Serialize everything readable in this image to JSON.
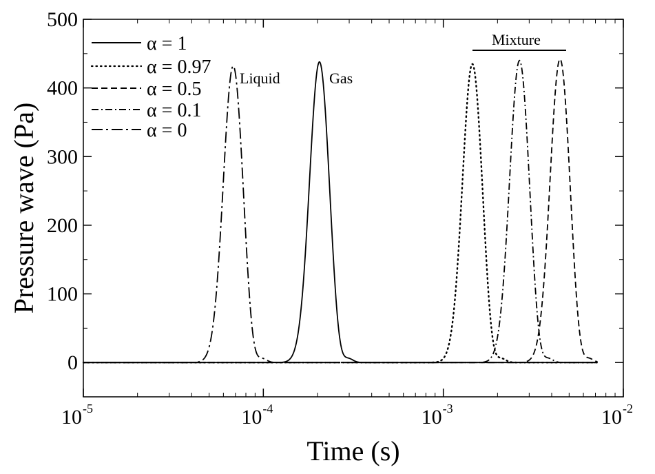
{
  "chart_data": {
    "type": "line",
    "title": "",
    "xlabel": "Time (s)",
    "ylabel": "Pressure wave (Pa)",
    "xscale": "log",
    "xlim": [
      1e-05,
      0.01
    ],
    "ylim": [
      -50,
      500
    ],
    "x_ticks": [
      {
        "base": "10",
        "exp": "-5",
        "value": 1e-05
      },
      {
        "base": "10",
        "exp": "-4",
        "value": 0.0001
      },
      {
        "base": "10",
        "exp": "-3",
        "value": 0.001
      },
      {
        "base": "10",
        "exp": "-2",
        "value": 0.01
      }
    ],
    "y_ticks": [
      0,
      100,
      200,
      300,
      400,
      500
    ],
    "y_tick_labels": [
      "0",
      "100",
      "200",
      "300",
      "400",
      "500"
    ],
    "legend_position": "top-left",
    "series": [
      {
        "name": "α = 1",
        "dash": "solid",
        "peak_time": 0.000205,
        "peak": 438
      },
      {
        "name": "α = 0.97",
        "dash": "dotted",
        "peak_time": 0.00145,
        "peak": 435
      },
      {
        "name": "α = 0.5",
        "dash": "dashed",
        "peak_time": 0.00445,
        "peak": 442
      },
      {
        "name": "α = 0.1",
        "dash": "dashdot",
        "peak_time": 0.00265,
        "peak": 440
      },
      {
        "name": "α = 0",
        "dash": "longdashdot",
        "peak_time": 6.8e-05,
        "peak": 432
      }
    ],
    "annotations": {
      "liquid": "Liquid",
      "gas": "Gas",
      "mixture": "Mixture"
    }
  }
}
